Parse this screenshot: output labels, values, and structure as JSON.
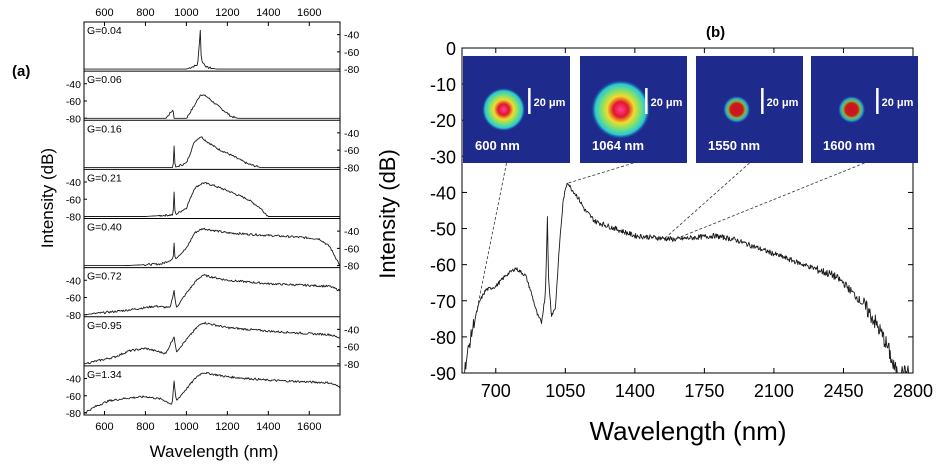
{
  "chart_data": [
    {
      "type": "line",
      "panel_label": "(a)",
      "xlabel": "Wavelength (nm)",
      "ylabel": "Intensity (dB)",
      "xlim": [
        500,
        1750
      ],
      "x_ticks_bottom": [
        "600",
        "800",
        "1000",
        "1200",
        "1400",
        "1600"
      ],
      "x_ticks_top": [
        "600",
        "800",
        "1000",
        "1200",
        "1400",
        "1600"
      ],
      "y_ticks": [
        "-40",
        "-60",
        "-80"
      ],
      "ylim_each_panel": [
        -80,
        -30
      ],
      "y_tick_side_alternates": [
        "right",
        "left",
        "right",
        "left",
        "right",
        "left",
        "right",
        "left"
      ],
      "series": [
        {
          "name": "G=0.04",
          "points": [
            [
              500,
              -80
            ],
            [
              1000,
              -80
            ],
            [
              1055,
              -75
            ],
            [
              1068,
              -35
            ],
            [
              1073,
              -70
            ],
            [
              1100,
              -78
            ],
            [
              1150,
              -80
            ],
            [
              1750,
              -80
            ]
          ]
        },
        {
          "name": "G=0.06",
          "points": [
            [
              500,
              -80
            ],
            [
              900,
              -80
            ],
            [
              935,
              -70
            ],
            [
              940,
              -80
            ],
            [
              1000,
              -80
            ],
            [
              1040,
              -65
            ],
            [
              1070,
              -52
            ],
            [
              1100,
              -55
            ],
            [
              1150,
              -65
            ],
            [
              1220,
              -78
            ],
            [
              1250,
              -80
            ],
            [
              1750,
              -80
            ]
          ]
        },
        {
          "name": "G=0.16",
          "points": [
            [
              500,
              -80
            ],
            [
              935,
              -80
            ],
            [
              940,
              -56
            ],
            [
              945,
              -80
            ],
            [
              1000,
              -75
            ],
            [
              1040,
              -50
            ],
            [
              1070,
              -44
            ],
            [
              1100,
              -50
            ],
            [
              1150,
              -58
            ],
            [
              1220,
              -66
            ],
            [
              1300,
              -76
            ],
            [
              1360,
              -80
            ],
            [
              1750,
              -80
            ]
          ]
        },
        {
          "name": "G=0.21",
          "points": [
            [
              500,
              -80
            ],
            [
              800,
              -80
            ],
            [
              935,
              -78
            ],
            [
              940,
              -52
            ],
            [
              945,
              -78
            ],
            [
              1000,
              -70
            ],
            [
              1040,
              -47
            ],
            [
              1080,
              -41
            ],
            [
              1120,
              -43
            ],
            [
              1200,
              -50
            ],
            [
              1300,
              -60
            ],
            [
              1360,
              -70
            ],
            [
              1400,
              -80
            ],
            [
              1750,
              -80
            ]
          ]
        },
        {
          "name": "G=0.40",
          "points": [
            [
              500,
              -80
            ],
            [
              700,
              -80
            ],
            [
              880,
              -78
            ],
            [
              935,
              -72
            ],
            [
              940,
              -55
            ],
            [
              945,
              -72
            ],
            [
              1000,
              -60
            ],
            [
              1040,
              -42
            ],
            [
              1080,
              -37
            ],
            [
              1200,
              -42
            ],
            [
              1400,
              -45
            ],
            [
              1550,
              -47
            ],
            [
              1650,
              -49
            ],
            [
              1700,
              -58
            ],
            [
              1750,
              -80
            ]
          ]
        },
        {
          "name": "G=0.72",
          "points": [
            [
              500,
              -80
            ],
            [
              700,
              -75
            ],
            [
              850,
              -70
            ],
            [
              920,
              -72
            ],
            [
              940,
              -52
            ],
            [
              950,
              -72
            ],
            [
              1000,
              -55
            ],
            [
              1050,
              -40
            ],
            [
              1080,
              -34
            ],
            [
              1200,
              -40
            ],
            [
              1400,
              -44
            ],
            [
              1600,
              -46
            ],
            [
              1700,
              -47
            ],
            [
              1750,
              -52
            ]
          ]
        },
        {
          "name": "G=0.95",
          "points": [
            [
              500,
              -80
            ],
            [
              650,
              -72
            ],
            [
              720,
              -65
            ],
            [
              800,
              -62
            ],
            [
              900,
              -68
            ],
            [
              940,
              -48
            ],
            [
              950,
              -66
            ],
            [
              1000,
              -52
            ],
            [
              1050,
              -38
            ],
            [
              1080,
              -32
            ],
            [
              1200,
              -38
            ],
            [
              1400,
              -42
            ],
            [
              1600,
              -45
            ],
            [
              1700,
              -46
            ],
            [
              1750,
              -50
            ]
          ]
        },
        {
          "name": "G=1.34",
          "points": [
            [
              500,
              -80
            ],
            [
              560,
              -72
            ],
            [
              620,
              -66
            ],
            [
              700,
              -63
            ],
            [
              800,
              -61
            ],
            [
              880,
              -64
            ],
            [
              930,
              -70
            ],
            [
              940,
              -44
            ],
            [
              950,
              -66
            ],
            [
              1000,
              -52
            ],
            [
              1050,
              -38
            ],
            [
              1080,
              -33
            ],
            [
              1200,
              -38
            ],
            [
              1400,
              -42
            ],
            [
              1600,
              -44
            ],
            [
              1700,
              -45
            ],
            [
              1750,
              -50
            ]
          ]
        }
      ]
    },
    {
      "type": "line",
      "panel_label": "(b)",
      "xlabel": "Wavelength (nm)",
      "ylabel": "Intensity (dB)",
      "xlim": [
        530,
        2800
      ],
      "ylim": [
        -90,
        0
      ],
      "x_ticks": [
        700,
        1050,
        1400,
        1750,
        2100,
        2450,
        2800
      ],
      "y_ticks": [
        0,
        -10,
        -20,
        -30,
        -40,
        -50,
        -60,
        -70,
        -80,
        -90
      ],
      "series": [
        {
          "points": [
            [
              540,
              -90
            ],
            [
              560,
              -84
            ],
            [
              590,
              -76
            ],
            [
              620,
              -70
            ],
            [
              650,
              -67
            ],
            [
              700,
              -66
            ],
            [
              750,
              -63
            ],
            [
              800,
              -61
            ],
            [
              850,
              -63
            ],
            [
              880,
              -68
            ],
            [
              910,
              -74
            ],
            [
              930,
              -76
            ],
            [
              950,
              -68
            ],
            [
              960,
              -47
            ],
            [
              965,
              -63
            ],
            [
              980,
              -74
            ],
            [
              1000,
              -72
            ],
            [
              1020,
              -55
            ],
            [
              1040,
              -42
            ],
            [
              1060,
              -37
            ],
            [
              1080,
              -39
            ],
            [
              1110,
              -41
            ],
            [
              1150,
              -45
            ],
            [
              1200,
              -48
            ],
            [
              1300,
              -50
            ],
            [
              1400,
              -52
            ],
            [
              1500,
              -52.5
            ],
            [
              1600,
              -53
            ],
            [
              1700,
              -52.5
            ],
            [
              1800,
              -52
            ],
            [
              1900,
              -53
            ],
            [
              2000,
              -55
            ],
            [
              2100,
              -57
            ],
            [
              2200,
              -59
            ],
            [
              2300,
              -61
            ],
            [
              2400,
              -63
            ],
            [
              2450,
              -65
            ],
            [
              2500,
              -68
            ],
            [
              2550,
              -71
            ],
            [
              2600,
              -75
            ],
            [
              2650,
              -80
            ],
            [
              2680,
              -84
            ],
            [
              2700,
              -88
            ],
            [
              2720,
              -90
            ]
          ]
        }
      ],
      "insets": [
        {
          "caption": "600 nm",
          "scale_label": "20 μm",
          "wavelength": 600,
          "spot": "medium"
        },
        {
          "caption": "1064 nm",
          "scale_label": "20 μm",
          "wavelength": 1064,
          "spot": "large"
        },
        {
          "caption": "1550 nm",
          "scale_label": "20 μm",
          "wavelength": 1550,
          "spot": "small"
        },
        {
          "caption": "1600 nm",
          "scale_label": "20 μm",
          "wavelength": 1600,
          "spot": "small"
        }
      ],
      "colors": {
        "inset_background": "#1e2a8c",
        "spot_edge": "#27c9d8",
        "spot_mid": "#f0dc2a",
        "spot_core": "#e0182a"
      }
    }
  ]
}
